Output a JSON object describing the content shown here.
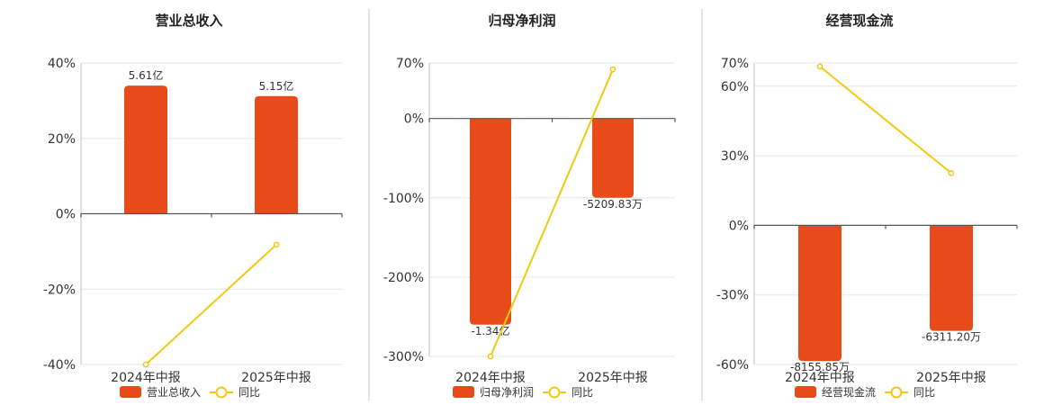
{
  "colors": {
    "bar": "#e84b1a",
    "line": "#f2c811",
    "marker_fill": "#ffffff"
  },
  "chart_data": [
    {
      "type": "bar",
      "title": "营业总收入",
      "categories": [
        "2024年中报",
        "2025年中报"
      ],
      "ylim": [
        -40,
        40
      ],
      "yticks": [
        "40%",
        "20%",
        "0%",
        "-20%",
        "-40%"
      ],
      "ytick_values": [
        40,
        20,
        0,
        -20,
        -40
      ],
      "bar_axis_min": -40,
      "bar_axis_max": 40,
      "series": [
        {
          "name": "营业总收入",
          "kind": "bar",
          "values": [
            5.61,
            5.15
          ],
          "labels": [
            "5.61亿",
            "5.15亿"
          ],
          "bar_scale_max": 5.61
        },
        {
          "name": "同比",
          "kind": "line",
          "values": [
            -40,
            -8.2
          ]
        }
      ],
      "legend": [
        "营业总收入",
        "同比"
      ]
    },
    {
      "type": "bar",
      "title": "归母净利润",
      "categories": [
        "2024年中报",
        "2025年中报"
      ],
      "ylim": [
        -300,
        70
      ],
      "yticks": [
        "70%",
        "0%",
        "-100%",
        "-200%",
        "-300%"
      ],
      "ytick_values": [
        70,
        0,
        -100,
        -200,
        -300
      ],
      "series": [
        {
          "name": "归母净利润",
          "kind": "bar",
          "values": [
            -260,
            -100
          ],
          "labels": [
            "-1.34亿",
            "-5209.83万"
          ]
        },
        {
          "name": "同比",
          "kind": "line",
          "values": [
            -300,
            62
          ]
        }
      ],
      "legend": [
        "归母净利润",
        "同比"
      ]
    },
    {
      "type": "bar",
      "title": "经营现金流",
      "categories": [
        "2024年中报",
        "2025年中报"
      ],
      "ylim": [
        -60,
        70
      ],
      "yticks": [
        "70%",
        "60%",
        "30%",
        "0%",
        "-30%",
        "-60%"
      ],
      "ytick_values": [
        70,
        60,
        30,
        0,
        -30,
        -60
      ],
      "series": [
        {
          "name": "经营现金流",
          "kind": "bar",
          "values": [
            -58.5,
            -45.5
          ],
          "labels": [
            "-8155.85万",
            "-6311.20万"
          ]
        },
        {
          "name": "同比",
          "kind": "line",
          "values": [
            68.5,
            22.5
          ]
        }
      ],
      "legend": [
        "经营现金流",
        "同比"
      ]
    }
  ]
}
